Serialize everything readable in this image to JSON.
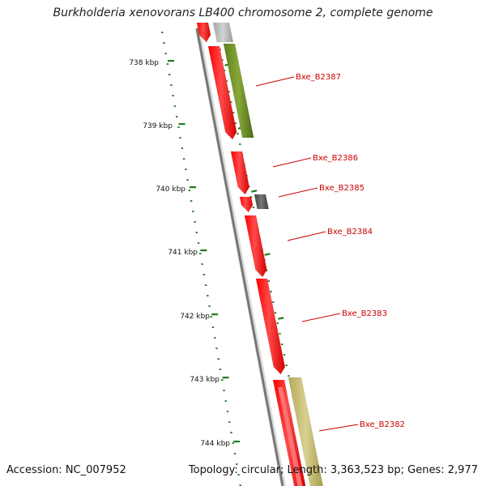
{
  "title": "Burkholderia xenovorans LB400 chromosome 2, complete genome",
  "footer": {
    "accession": "Accession: NC_007952",
    "summary": "Topology: circular; Length: 3,363,523 bp; Genes: 2,977"
  },
  "scale_labels": [
    "738 kbp",
    "739 kbp",
    "740 kbp",
    "741 kbp",
    "742 kbp",
    "743 kbp",
    "744 kbp"
  ],
  "gene_labels": [
    "Bxe_B2387",
    "Bxe_B2386",
    "Bxe_B2385",
    "Bxe_B2384",
    "Bxe_B2383",
    "Bxe_B2382"
  ],
  "colors": {
    "forward_gene": "#ff0000",
    "forward_gene_light": "#ff8080",
    "unlabeled_gene_gray": "#b4b4b4",
    "green_gene": "#6b8e23",
    "olive_gene": "#c8be78",
    "small_gene": "#555555",
    "label_red": "#cc0000",
    "tick_green": "#1f7a1f",
    "backbone": "#777777"
  }
}
